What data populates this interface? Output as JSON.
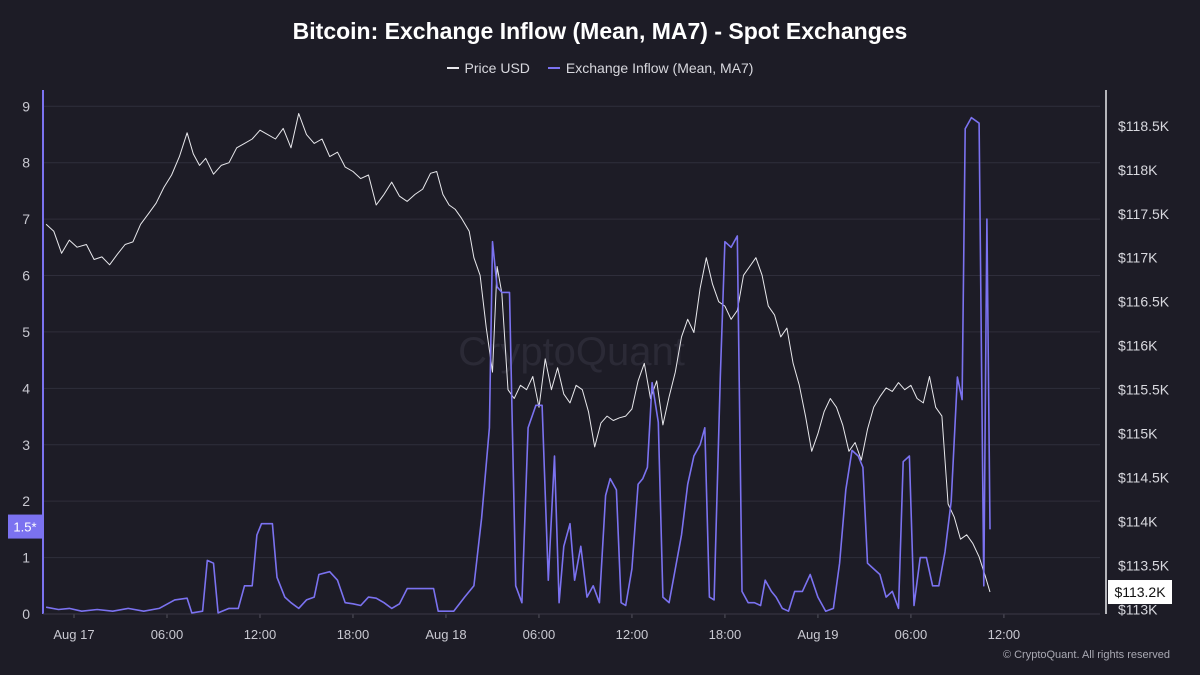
{
  "title": "Bitcoin: Exchange Inflow (Mean, MA7) - Spot Exchanges",
  "watermark": "CryptoQuant",
  "copyright": "© CryptoQuant. All rights reserved",
  "colors": {
    "background": "#1d1c26",
    "price": "#e8e8ec",
    "inflow": "#7b72f0",
    "grid": "#2f2e3b"
  },
  "chart_data": {
    "type": "line",
    "title": "Bitcoin: Exchange Inflow (Mean, MA7) - Spot Exchanges",
    "legend_position": "top-center",
    "grid": true,
    "x_labels": [
      "Aug 17",
      "06:00",
      "12:00",
      "18:00",
      "Aug 18",
      "06:00",
      "12:00",
      "18:00",
      "Aug 19",
      "06:00",
      "12:00"
    ],
    "x_range_hours": [
      -2,
      66.2
    ],
    "left_axis": {
      "ticks": [
        0,
        1,
        2,
        3,
        4,
        5,
        6,
        7,
        8,
        9
      ],
      "range": [
        0,
        9.2
      ],
      "current_label": "1.5*",
      "current_value": 1.55
    },
    "right_axis": {
      "ticks": [
        113000,
        113500,
        114000,
        114500,
        115000,
        115500,
        116000,
        116500,
        117000,
        117500,
        118000,
        118500
      ],
      "tick_labels": [
        "$113K",
        "$113.5K",
        "$114K",
        "$114.5K",
        "$115K",
        "$115.5K",
        "$116K",
        "$116.5K",
        "$117K",
        "$117.5K",
        "$118K",
        "$118.5K"
      ],
      "range": [
        112950,
        118850
      ],
      "current_label": "$113.2K",
      "current_value": 113200
    },
    "series": [
      {
        "name": "Price USD",
        "axis": "right",
        "points": [
          [
            -1.8,
            117380
          ],
          [
            -1.3,
            117300
          ],
          [
            -0.8,
            117050
          ],
          [
            -0.3,
            117200
          ],
          [
            0.2,
            117120
          ],
          [
            0.8,
            117150
          ],
          [
            1.3,
            116980
          ],
          [
            1.8,
            117010
          ],
          [
            2.3,
            116920
          ],
          [
            2.8,
            117040
          ],
          [
            3.3,
            117150
          ],
          [
            3.8,
            117180
          ],
          [
            4.3,
            117380
          ],
          [
            4.8,
            117500
          ],
          [
            5.3,
            117620
          ],
          [
            5.8,
            117800
          ],
          [
            6.3,
            117940
          ],
          [
            6.8,
            118150
          ],
          [
            7.3,
            118420
          ],
          [
            7.7,
            118180
          ],
          [
            8.1,
            118050
          ],
          [
            8.5,
            118130
          ],
          [
            9.0,
            117950
          ],
          [
            9.5,
            118050
          ],
          [
            10.0,
            118080
          ],
          [
            10.5,
            118250
          ],
          [
            11.0,
            118300
          ],
          [
            11.5,
            118350
          ],
          [
            12.0,
            118450
          ],
          [
            12.5,
            118400
          ],
          [
            13.0,
            118350
          ],
          [
            13.5,
            118470
          ],
          [
            14.0,
            118250
          ],
          [
            14.5,
            118640
          ],
          [
            15.0,
            118400
          ],
          [
            15.5,
            118300
          ],
          [
            16.0,
            118350
          ],
          [
            16.5,
            118150
          ],
          [
            17.0,
            118200
          ],
          [
            17.5,
            118030
          ],
          [
            18.0,
            117980
          ],
          [
            18.5,
            117900
          ],
          [
            19.0,
            117940
          ],
          [
            19.5,
            117600
          ],
          [
            20.0,
            117720
          ],
          [
            20.5,
            117860
          ],
          [
            21.0,
            117700
          ],
          [
            21.5,
            117640
          ],
          [
            22.0,
            117720
          ],
          [
            22.5,
            117780
          ],
          [
            23.0,
            117960
          ],
          [
            23.4,
            117980
          ],
          [
            23.8,
            117720
          ],
          [
            24.2,
            117600
          ],
          [
            24.6,
            117550
          ],
          [
            25.0,
            117450
          ],
          [
            25.5,
            117300
          ],
          [
            25.8,
            117000
          ],
          [
            26.2,
            116800
          ],
          [
            26.6,
            116200
          ],
          [
            27.0,
            115700
          ],
          [
            27.3,
            116900
          ],
          [
            27.6,
            116600
          ],
          [
            28.0,
            115500
          ],
          [
            28.4,
            115400
          ],
          [
            28.8,
            115550
          ],
          [
            29.2,
            115500
          ],
          [
            29.6,
            115650
          ],
          [
            30.0,
            115300
          ],
          [
            30.4,
            115850
          ],
          [
            30.8,
            115500
          ],
          [
            31.2,
            115750
          ],
          [
            31.6,
            115450
          ],
          [
            32.0,
            115350
          ],
          [
            32.4,
            115550
          ],
          [
            32.8,
            115500
          ],
          [
            33.2,
            115250
          ],
          [
            33.6,
            114850
          ],
          [
            34.0,
            115120
          ],
          [
            34.4,
            115200
          ],
          [
            34.8,
            115150
          ],
          [
            35.2,
            115180
          ],
          [
            35.6,
            115200
          ],
          [
            36.0,
            115280
          ],
          [
            36.4,
            115600
          ],
          [
            36.8,
            115800
          ],
          [
            37.2,
            115400
          ],
          [
            37.6,
            115600
          ],
          [
            38.0,
            115100
          ],
          [
            38.4,
            115420
          ],
          [
            38.8,
            115700
          ],
          [
            39.2,
            116100
          ],
          [
            39.6,
            116300
          ],
          [
            40.0,
            116150
          ],
          [
            40.4,
            116650
          ],
          [
            40.8,
            117000
          ],
          [
            41.2,
            116700
          ],
          [
            41.6,
            116500
          ],
          [
            42.0,
            116450
          ],
          [
            42.4,
            116300
          ],
          [
            42.8,
            116400
          ],
          [
            43.2,
            116800
          ],
          [
            43.6,
            116900
          ],
          [
            44.0,
            117000
          ],
          [
            44.4,
            116800
          ],
          [
            44.8,
            116450
          ],
          [
            45.2,
            116350
          ],
          [
            45.6,
            116100
          ],
          [
            46.0,
            116200
          ],
          [
            46.4,
            115800
          ],
          [
            46.8,
            115550
          ],
          [
            47.2,
            115200
          ],
          [
            47.6,
            114800
          ],
          [
            48.0,
            115000
          ],
          [
            48.4,
            115250
          ],
          [
            48.8,
            115400
          ],
          [
            49.2,
            115300
          ],
          [
            49.6,
            115100
          ],
          [
            50.0,
            114800
          ],
          [
            50.4,
            114900
          ],
          [
            50.8,
            114700
          ],
          [
            51.2,
            115050
          ],
          [
            51.6,
            115300
          ],
          [
            52.0,
            115420
          ],
          [
            52.4,
            115520
          ],
          [
            52.8,
            115480
          ],
          [
            53.2,
            115580
          ],
          [
            53.6,
            115500
          ],
          [
            54.0,
            115550
          ],
          [
            54.4,
            115400
          ],
          [
            54.8,
            115350
          ],
          [
            55.2,
            115650
          ],
          [
            55.6,
            115300
          ],
          [
            56.0,
            115200
          ],
          [
            56.4,
            114200
          ],
          [
            56.8,
            114050
          ],
          [
            57.2,
            113800
          ],
          [
            57.6,
            113850
          ],
          [
            58.0,
            113750
          ],
          [
            58.4,
            113600
          ],
          [
            58.8,
            113380
          ],
          [
            59.1,
            113200
          ]
        ]
      },
      {
        "name": "Exchange Inflow (Mean, MA7)",
        "axis": "left",
        "points": [
          [
            -1.8,
            0.12
          ],
          [
            -1.0,
            0.08
          ],
          [
            -0.3,
            0.1
          ],
          [
            0.5,
            0.05
          ],
          [
            1.5,
            0.08
          ],
          [
            2.5,
            0.05
          ],
          [
            3.5,
            0.1
          ],
          [
            4.5,
            0.05
          ],
          [
            5.5,
            0.1
          ],
          [
            6.5,
            0.25
          ],
          [
            7.3,
            0.28
          ],
          [
            7.6,
            0.02
          ],
          [
            8.3,
            0.05
          ],
          [
            8.6,
            0.95
          ],
          [
            9.0,
            0.9
          ],
          [
            9.3,
            0.02
          ],
          [
            10.0,
            0.1
          ],
          [
            10.6,
            0.1
          ],
          [
            11.0,
            0.5
          ],
          [
            11.5,
            0.5
          ],
          [
            11.8,
            1.4
          ],
          [
            12.1,
            1.6
          ],
          [
            12.8,
            1.6
          ],
          [
            13.1,
            0.65
          ],
          [
            13.6,
            0.3
          ],
          [
            14.0,
            0.2
          ],
          [
            14.5,
            0.1
          ],
          [
            15.0,
            0.25
          ],
          [
            15.5,
            0.3
          ],
          [
            15.8,
            0.7
          ],
          [
            16.5,
            0.75
          ],
          [
            17.0,
            0.6
          ],
          [
            17.5,
            0.2
          ],
          [
            18.0,
            0.18
          ],
          [
            18.5,
            0.15
          ],
          [
            19.0,
            0.3
          ],
          [
            19.5,
            0.28
          ],
          [
            20.0,
            0.2
          ],
          [
            20.5,
            0.1
          ],
          [
            21.0,
            0.18
          ],
          [
            21.5,
            0.45
          ],
          [
            22.5,
            0.45
          ],
          [
            23.2,
            0.45
          ],
          [
            23.5,
            0.05
          ],
          [
            24.5,
            0.05
          ],
          [
            25.2,
            0.3
          ],
          [
            25.8,
            0.5
          ],
          [
            26.3,
            1.7
          ],
          [
            26.8,
            3.3
          ],
          [
            27.0,
            6.6
          ],
          [
            27.3,
            5.8
          ],
          [
            27.6,
            5.7
          ],
          [
            28.1,
            5.7
          ],
          [
            28.5,
            0.5
          ],
          [
            28.9,
            0.2
          ],
          [
            29.3,
            3.3
          ],
          [
            29.8,
            3.7
          ],
          [
            30.2,
            3.7
          ],
          [
            30.6,
            0.6
          ],
          [
            31.0,
            2.8
          ],
          [
            31.3,
            0.2
          ],
          [
            31.6,
            1.2
          ],
          [
            32.0,
            1.6
          ],
          [
            32.3,
            0.6
          ],
          [
            32.7,
            1.2
          ],
          [
            33.1,
            0.3
          ],
          [
            33.5,
            0.5
          ],
          [
            33.9,
            0.2
          ],
          [
            34.3,
            2.1
          ],
          [
            34.6,
            2.4
          ],
          [
            35.0,
            2.2
          ],
          [
            35.3,
            0.2
          ],
          [
            35.6,
            0.15
          ],
          [
            36.0,
            0.8
          ],
          [
            36.4,
            2.3
          ],
          [
            36.7,
            2.4
          ],
          [
            37.0,
            2.6
          ],
          [
            37.3,
            4.1
          ],
          [
            37.7,
            3.4
          ],
          [
            38.0,
            0.3
          ],
          [
            38.4,
            0.2
          ],
          [
            38.8,
            0.8
          ],
          [
            39.2,
            1.4
          ],
          [
            39.6,
            2.3
          ],
          [
            40.0,
            2.8
          ],
          [
            40.4,
            3.0
          ],
          [
            40.7,
            3.3
          ],
          [
            41.0,
            0.3
          ],
          [
            41.3,
            0.25
          ],
          [
            41.7,
            4.2
          ],
          [
            42.0,
            6.6
          ],
          [
            42.4,
            6.5
          ],
          [
            42.8,
            6.7
          ],
          [
            43.1,
            0.4
          ],
          [
            43.5,
            0.2
          ],
          [
            43.9,
            0.2
          ],
          [
            44.3,
            0.15
          ],
          [
            44.6,
            0.6
          ],
          [
            45.0,
            0.4
          ],
          [
            45.3,
            0.3
          ],
          [
            45.7,
            0.1
          ],
          [
            46.1,
            0.05
          ],
          [
            46.5,
            0.4
          ],
          [
            47.0,
            0.4
          ],
          [
            47.5,
            0.7
          ],
          [
            48.0,
            0.3
          ],
          [
            48.5,
            0.05
          ],
          [
            49.0,
            0.1
          ],
          [
            49.4,
            0.9
          ],
          [
            49.8,
            2.2
          ],
          [
            50.2,
            2.9
          ],
          [
            50.6,
            2.8
          ],
          [
            50.9,
            2.6
          ],
          [
            51.2,
            0.9
          ],
          [
            51.6,
            0.8
          ],
          [
            52.0,
            0.7
          ],
          [
            52.4,
            0.3
          ],
          [
            52.8,
            0.4
          ],
          [
            53.2,
            0.1
          ],
          [
            53.5,
            2.7
          ],
          [
            53.9,
            2.8
          ],
          [
            54.2,
            0.15
          ],
          [
            54.6,
            1.0
          ],
          [
            55.0,
            1.0
          ],
          [
            55.4,
            0.5
          ],
          [
            55.8,
            0.5
          ],
          [
            56.2,
            1.1
          ],
          [
            56.6,
            2.0
          ],
          [
            57.0,
            4.2
          ],
          [
            57.3,
            3.8
          ],
          [
            57.5,
            8.6
          ],
          [
            57.9,
            8.8
          ],
          [
            58.4,
            8.7
          ],
          [
            58.7,
            0.5
          ],
          [
            58.9,
            7.0
          ],
          [
            59.1,
            1.5
          ]
        ]
      }
    ]
  }
}
